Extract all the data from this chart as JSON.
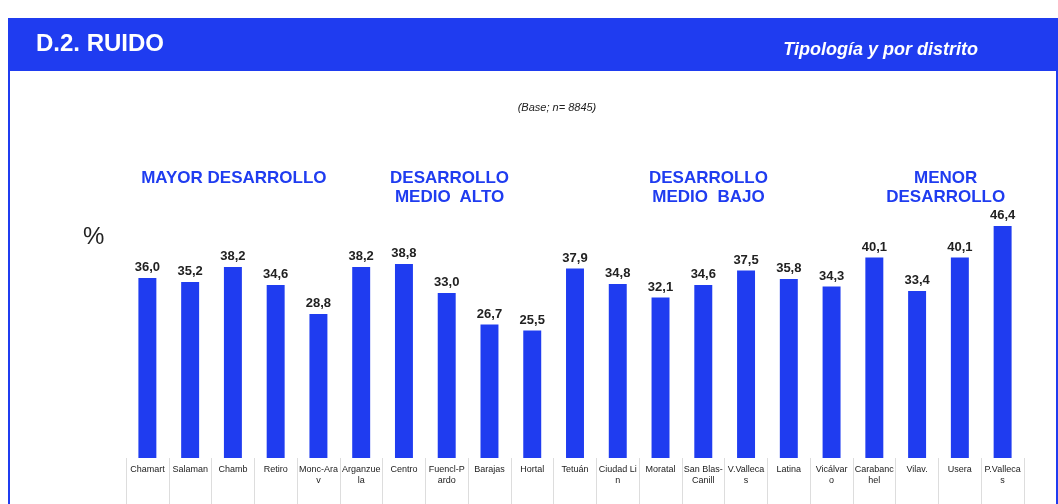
{
  "chart_data": {
    "type": "bar",
    "title": "D.2. RUIDO",
    "subtitle": "Tipología y por distrito",
    "ylabel": "%",
    "annotations": [
      "(Base; n= 8845)",
      "MAYOR DESARROLLO",
      "DESARROLLO\nMEDIO  ALTO",
      "DESARROLLO\nMEDIO  BAJO",
      "MENOR\nDESARROLLO"
    ],
    "categories": [
      "Chamart",
      "Salaman",
      "Chamb",
      "Retiro",
      "Monc-Arav",
      "Arganzuela",
      "Centro",
      "Fuencl-Pardo",
      "Barajas",
      "Hortal",
      "Tetuán",
      "Ciudad Lin",
      "Moratal",
      "San Blas-Canill",
      "V.Vallecas",
      "Latina",
      "Vicálvaro",
      "Carabanchel",
      "Vilav.",
      "Usera",
      "P.Vallecas"
    ],
    "values": [
      36.0,
      35.2,
      38.2,
      34.6,
      28.8,
      38.2,
      38.8,
      33.0,
      26.7,
      25.5,
      37.9,
      34.8,
      32.1,
      34.6,
      37.5,
      35.8,
      34.3,
      40.1,
      33.4,
      40.1,
      46.4
    ],
    "value_labels": [
      "36,0",
      "35,2",
      "38,2",
      "34,6",
      "28,8",
      "38,2",
      "38,8",
      "33,0",
      "26,7",
      "25,5",
      "37,9",
      "34,8",
      "32,1",
      "34,6",
      "37,5",
      "35,8",
      "34,3",
      "40,1",
      "33,4",
      "40,1",
      "46,4"
    ],
    "color": "#1f3cf0",
    "tick_labels": "x"
  }
}
